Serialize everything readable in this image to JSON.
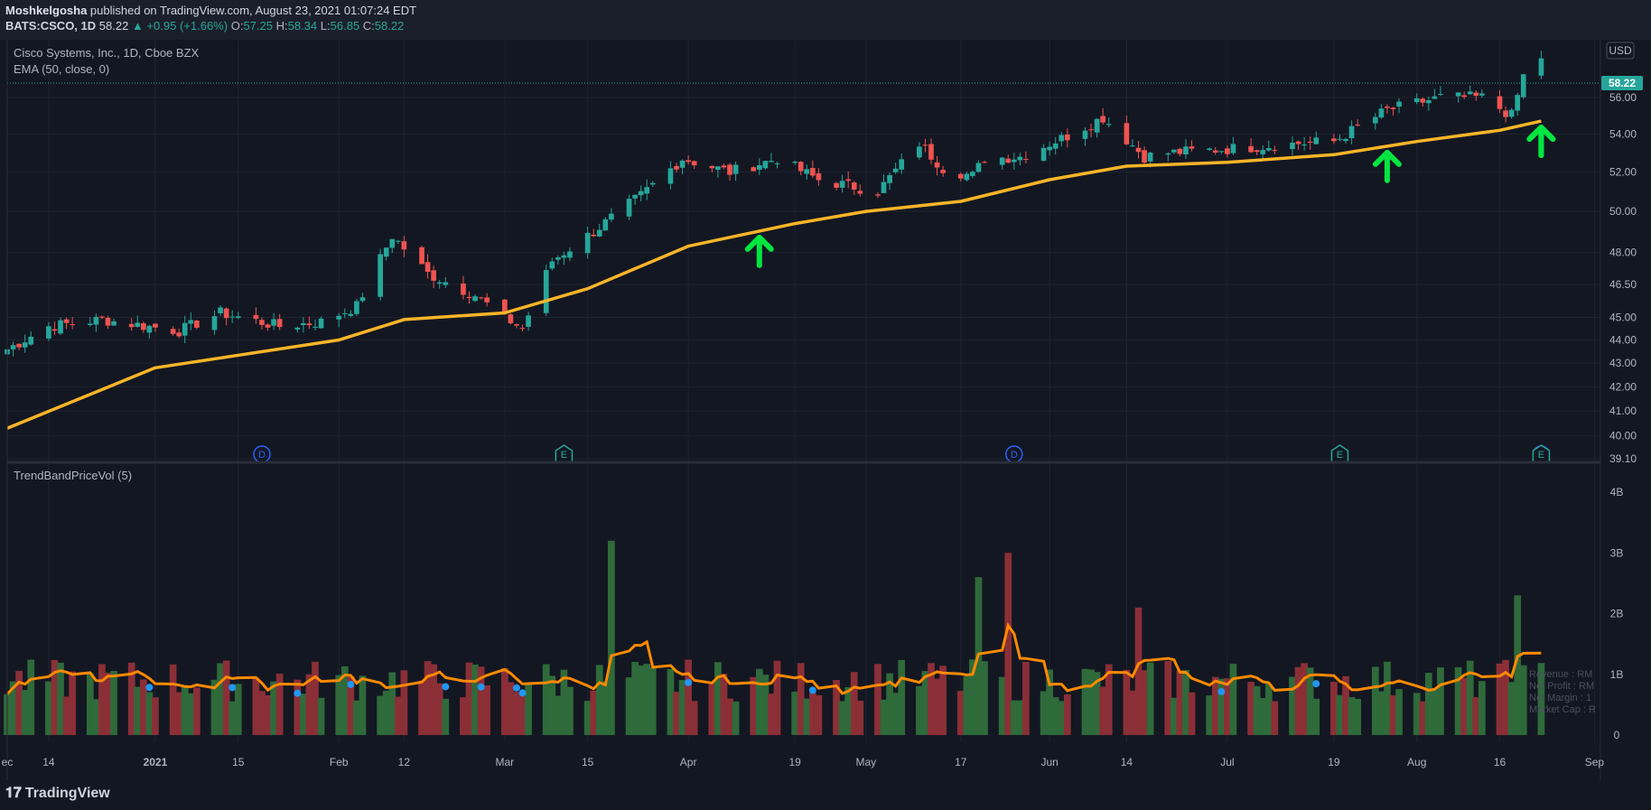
{
  "header": {
    "author": "Moshkelgosha",
    "published": "published on TradingView.com, August 23, 2021 01:07:24 EDT",
    "symbol": "BATS:CSCO, 1D",
    "last": "58.22",
    "change_arrow": "▲",
    "change": "+0.95 (+1.66%)",
    "o_label": "O:",
    "o_val": "57.25",
    "h_label": "H:",
    "h_val": "58.34",
    "l_label": "L:",
    "l_val": "56.85",
    "c_label": "C:",
    "c_val": "58.22"
  },
  "pane_legend": {
    "title": "Cisco Systems, Inc., 1D, Cboe BZX",
    "indicator": "EMA (50, close, 0)",
    "volume_indicator": "TrendBandPriceVol (5)"
  },
  "currency_button": "USD",
  "price_badge": "58.22",
  "footer_brand": "TradingView",
  "event_markers": [
    {
      "letter": "D",
      "date_index": 31,
      "color": "#2962ff"
    },
    {
      "letter": "E",
      "date_index": 68,
      "color": "#26a69a"
    },
    {
      "letter": "D",
      "date_index": 122,
      "color": "#2962ff"
    },
    {
      "letter": "E",
      "date_index": 161,
      "color": "#26a69a"
    },
    {
      "letter": "D",
      "date_index": 215,
      "color": "#2962ff"
    },
    {
      "letter": "E",
      "date_index": 256,
      "color": "#26a69a"
    }
  ],
  "arrow_marks_at": [
    91,
    167,
    196,
    212,
    225,
    258
  ],
  "fundamentals_overlay": [
    "Revenue : RM",
    "Net Profit : RM",
    "Net Margin : 1",
    "Market Cap : R"
  ],
  "colors": {
    "up": "#26a69a",
    "down": "#ef5350",
    "ema": "#fbb528",
    "arrow": "#00e640",
    "vol_up": "#2f6a3a",
    "vol_down": "#8b2f37",
    "vol_line": "#ff8a00",
    "dots": "#2196f3"
  },
  "chart_data": {
    "type": "candlestick",
    "title": "Cisco Systems, Inc., 1D, Cboe BZX",
    "y_scale": "log",
    "ylim": [
      39.1,
      59.2
    ],
    "y_ticks": [
      "39.10",
      "40.00",
      "41.00",
      "42.00",
      "43.00",
      "44.00",
      "45.00",
      "46.50",
      "48.00",
      "50.00",
      "52.00",
      "54.00",
      "56.00"
    ],
    "x_range": [
      "2020-12-07",
      "2021-09-02"
    ],
    "x_ticks": [
      {
        "label": "ec",
        "date": "2020-12-07"
      },
      {
        "label": "14",
        "date": "2020-12-14"
      },
      {
        "label": "2021",
        "date": "2021-01-01"
      },
      {
        "label": "15",
        "date": "2021-01-15"
      },
      {
        "label": "Feb",
        "date": "2021-02-01"
      },
      {
        "label": "12",
        "date": "2021-02-12"
      },
      {
        "label": "Mar",
        "date": "2021-03-01"
      },
      {
        "label": "15",
        "date": "2021-03-15"
      },
      {
        "label": "Apr",
        "date": "2021-04-01"
      },
      {
        "label": "19",
        "date": "2021-04-19"
      },
      {
        "label": "May",
        "date": "2021-05-01"
      },
      {
        "label": "17",
        "date": "2021-05-17"
      },
      {
        "label": "Jun",
        "date": "2021-06-01"
      },
      {
        "label": "14",
        "date": "2021-06-14"
      },
      {
        "label": "Jul",
        "date": "2021-07-01"
      },
      {
        "label": "19",
        "date": "2021-07-19"
      },
      {
        "label": "Aug",
        "date": "2021-08-02"
      },
      {
        "label": "16",
        "date": "2021-08-16"
      },
      {
        "label": "Sep",
        "date": "2021-09-01"
      }
    ],
    "close_path": [
      [
        "2020-12-07",
        43.6
      ],
      [
        "2020-12-14",
        44.6
      ],
      [
        "2020-12-23",
        44.9
      ],
      [
        "2021-01-05",
        44.4
      ],
      [
        "2021-01-12",
        45.2
      ],
      [
        "2021-01-22",
        44.6
      ],
      [
        "2021-01-29",
        44.8
      ],
      [
        "2021-02-04",
        45.5
      ],
      [
        "2021-02-10",
        48.8
      ],
      [
        "2021-02-16",
        47.0
      ],
      [
        "2021-02-24",
        46.0
      ],
      [
        "2021-03-01",
        45.0
      ],
      [
        "2021-03-04",
        44.5
      ],
      [
        "2021-03-09",
        47.6
      ],
      [
        "2021-03-16",
        49.0
      ],
      [
        "2021-03-24",
        50.8
      ],
      [
        "2021-03-31",
        52.7
      ],
      [
        "2021-04-08",
        52.0
      ],
      [
        "2021-04-16",
        52.7
      ],
      [
        "2021-04-23",
        51.6
      ],
      [
        "2021-05-03",
        51.0
      ],
      [
        "2021-05-10",
        53.5
      ],
      [
        "2021-05-14",
        52.2
      ],
      [
        "2021-05-19",
        51.8
      ],
      [
        "2021-05-21",
        52.7
      ],
      [
        "2021-05-27",
        52.8
      ],
      [
        "2021-06-04",
        53.9
      ],
      [
        "2021-06-10",
        54.9
      ],
      [
        "2021-06-17",
        52.8
      ],
      [
        "2021-06-21",
        53.0
      ],
      [
        "2021-07-01",
        53.2
      ],
      [
        "2021-07-13",
        53.5
      ],
      [
        "2021-07-19",
        53.6
      ],
      [
        "2021-07-28",
        55.3
      ],
      [
        "2021-08-06",
        56.0
      ],
      [
        "2021-08-13",
        56.0
      ],
      [
        "2021-08-18",
        55.0
      ],
      [
        "2021-08-20",
        57.2
      ],
      [
        "2021-08-23",
        58.22
      ]
    ],
    "series": [
      {
        "name": "EMA (50, close, 0)",
        "points": [
          [
            "2020-12-07",
            40.3
          ],
          [
            "2021-01-01",
            42.8
          ],
          [
            "2021-02-01",
            44.0
          ],
          [
            "2021-02-12",
            44.9
          ],
          [
            "2021-03-01",
            45.2
          ],
          [
            "2021-03-15",
            46.3
          ],
          [
            "2021-04-01",
            48.3
          ],
          [
            "2021-04-19",
            49.4
          ],
          [
            "2021-05-01",
            50.0
          ],
          [
            "2021-05-17",
            50.5
          ],
          [
            "2021-06-01",
            51.6
          ],
          [
            "2021-06-14",
            52.3
          ],
          [
            "2021-07-01",
            52.5
          ],
          [
            "2021-07-19",
            52.9
          ],
          [
            "2021-08-02",
            53.6
          ],
          [
            "2021-08-16",
            54.2
          ],
          [
            "2021-08-23",
            54.7
          ]
        ]
      }
    ],
    "last_price": 58.22,
    "volume": {
      "ylim": [
        0,
        4
      ],
      "y_ticks": [
        "0",
        "1B",
        "2B",
        "3B",
        "4B"
      ],
      "spikes": [
        [
          "2021-03-19",
          3.2
        ],
        [
          "2021-05-20",
          2.6
        ],
        [
          "2021-05-25",
          3.0
        ],
        [
          "2021-06-16",
          2.1
        ],
        [
          "2021-08-19",
          2.3
        ]
      ]
    }
  }
}
